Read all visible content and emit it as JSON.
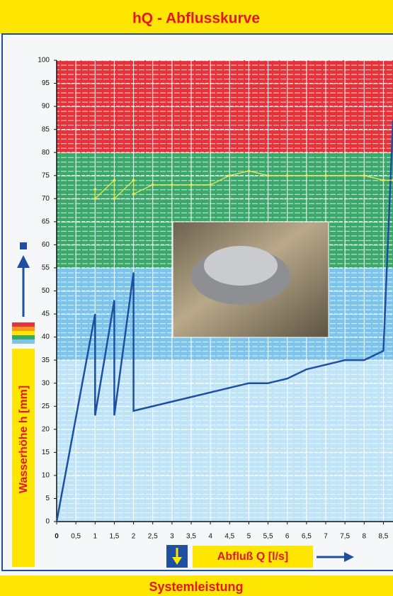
{
  "chart_data": {
    "type": "line",
    "title": "hQ - Abflusskurve",
    "footer": "Systemleistung",
    "ylabel": "Wasserhöhe h [mm]",
    "xlabel": "Abfluß Q [l/s]",
    "xlim": [
      0,
      8.75
    ],
    "ylim": [
      0,
      100
    ],
    "xticks": [
      0,
      {
        "value": 0.5,
        "label": "0,5"
      },
      1,
      {
        "value": 1.5,
        "label": "1,5"
      },
      2,
      {
        "value": 2.5,
        "label": "2,5"
      },
      3,
      {
        "value": 3.5,
        "label": "3,5"
      },
      4,
      {
        "value": 4.5,
        "label": "4,5"
      },
      5,
      {
        "value": 5.5,
        "label": "5,5"
      },
      6,
      {
        "value": 6.5,
        "label": "6,5"
      },
      7,
      {
        "value": 7.5,
        "label": "7,5"
      },
      8,
      {
        "value": 8.5,
        "label": "8,5"
      }
    ],
    "yticks": [
      0,
      5,
      10,
      15,
      20,
      25,
      30,
      35,
      40,
      45,
      50,
      55,
      60,
      65,
      70,
      75,
      80,
      85,
      90,
      95,
      100
    ],
    "grid": true,
    "bands": [
      {
        "from": 80,
        "to": 100,
        "color": "#e8323a"
      },
      {
        "from": 55,
        "to": 80,
        "color": "#3aa86a"
      },
      {
        "from": 35,
        "to": 55,
        "color": "#7cc4ec"
      },
      {
        "from": 0,
        "to": 35,
        "color": "#bfe3f7"
      }
    ],
    "series": [
      {
        "color": "#1f4fa0",
        "x": [
          0,
          1,
          1,
          1.5,
          1.5,
          2,
          2,
          5,
          5.5,
          6,
          6.5,
          7,
          7.5,
          8,
          8.5,
          8.75
        ],
        "values": [
          0,
          45,
          23,
          48,
          23,
          54,
          24,
          30,
          30,
          31,
          33,
          34,
          35,
          35,
          37,
          87
        ]
      },
      {
        "color": "#f4e84a",
        "x": [
          1,
          1,
          1.5,
          1.5,
          2,
          2,
          2.5,
          3,
          3.5,
          4,
          4.5,
          5,
          5.5,
          6,
          6.5,
          7,
          7.5,
          8,
          8.5,
          8.75
        ],
        "values": [
          72,
          70,
          74,
          70,
          74,
          71,
          73,
          73,
          73,
          73,
          75,
          76,
          75,
          75,
          75,
          75,
          75,
          75,
          74,
          74
        ]
      }
    ]
  }
}
